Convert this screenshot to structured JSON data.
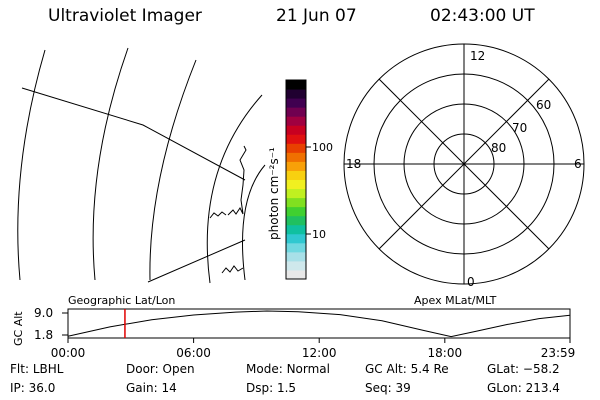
{
  "header": {
    "instrument": "Ultraviolet Imager",
    "date": "21 Jun 07",
    "time": "02:43:00 UT"
  },
  "colorbar": {
    "unit_label": "photon cm⁻²s⁻¹",
    "ticks": [
      "100",
      "10"
    ],
    "colors": [
      "#e8e8e8",
      "#cfe8ec",
      "#a8e0e8",
      "#70d8e0",
      "#30c8d0",
      "#10c0a0",
      "#20c060",
      "#40d030",
      "#80e020",
      "#c0f020",
      "#f0f020",
      "#f8d010",
      "#f8a008",
      "#f07000",
      "#e84000",
      "#e01010",
      "#c80020",
      "#a00040",
      "#700050",
      "#400050",
      "#200030",
      "#000000"
    ]
  },
  "polar": {
    "mlt_labels": {
      "top": "12",
      "left": "18",
      "right": "6",
      "bottom": "0"
    },
    "lat_labels": [
      "60",
      "70",
      "80"
    ]
  },
  "strip": {
    "ylabel": "GC Alt",
    "ymax": "9.0",
    "ymin": "1.8",
    "left_label": "Geographic Lat/Lon",
    "right_label": "Apex MLat/MLT",
    "xticks": [
      "00:00",
      "06:00",
      "12:00",
      "18:00",
      "23:59"
    ],
    "marker_time_hours": 2.72,
    "marker_color": "#e00000"
  },
  "chart_data": {
    "type": "line",
    "xlabel": "",
    "ylabel": "GC Alt",
    "xlim_hours": [
      0,
      23.98
    ],
    "ylim": [
      1.8,
      9.0
    ],
    "x_hours": [
      0,
      2,
      4,
      6,
      8,
      9.5,
      11,
      13,
      15,
      17,
      18.3,
      19.5,
      21,
      22.5,
      23.98
    ],
    "y": [
      2.0,
      4.6,
      6.6,
      7.9,
      8.7,
      9.0,
      8.8,
      8.0,
      6.3,
      3.6,
      1.9,
      3.4,
      5.3,
      6.9,
      7.8
    ]
  },
  "footer": {
    "row1": [
      {
        "label": "Flt:",
        "value": "LBHL"
      },
      {
        "label": "Door:",
        "value": "Open"
      },
      {
        "label": "Mode:",
        "value": "Normal"
      },
      {
        "label": "GC Alt:",
        "value": "5.4 Re"
      },
      {
        "label": "GLat:",
        "value": "−58.2"
      }
    ],
    "row2": [
      {
        "label": "IP:",
        "value": "36.0"
      },
      {
        "label": "Gain:",
        "value": "14"
      },
      {
        "label": "Dsp:",
        "value": "1.5"
      },
      {
        "label": "Seq:",
        "value": "39"
      },
      {
        "label": "GLon:",
        "value": "213.4"
      }
    ]
  }
}
